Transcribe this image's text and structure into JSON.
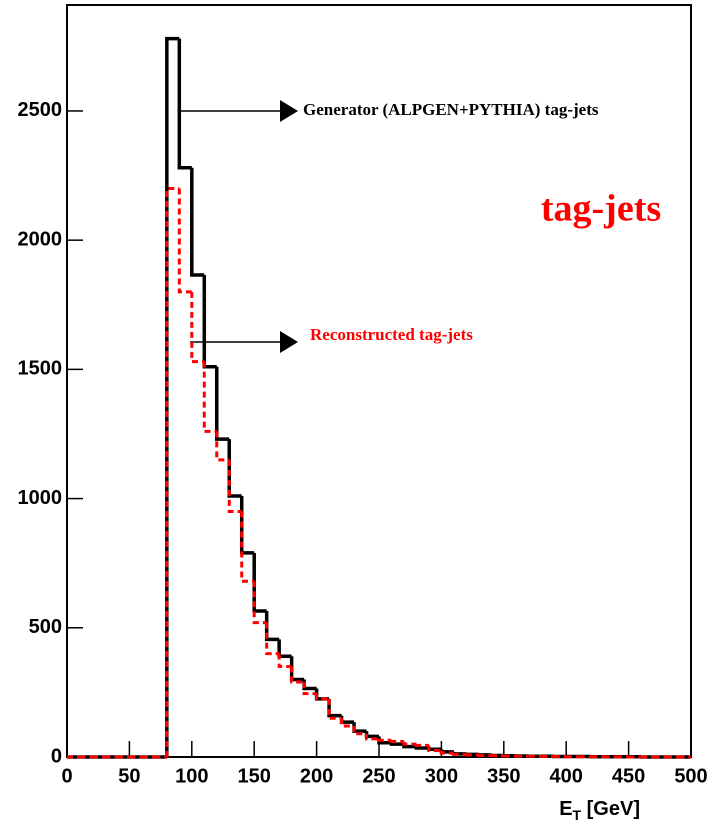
{
  "chart_data": {
    "type": "histogram",
    "x_label": {
      "main": "E",
      "sub": "T",
      "rest": " [GeV]"
    },
    "annotations": [
      "Generator (ALPGEN+PYTHIA) tag-jets",
      "Reconstructed tag-jets",
      "tag-jets"
    ],
    "bins": [
      0,
      10,
      20,
      30,
      40,
      50,
      60,
      70,
      80,
      90,
      100,
      110,
      120,
      130,
      140,
      150,
      160,
      170,
      180,
      190,
      200,
      210,
      220,
      230,
      240,
      250,
      260,
      270,
      280,
      290,
      300,
      310,
      320,
      330,
      340,
      350,
      360,
      370,
      380,
      390,
      400,
      410,
      420,
      430,
      440,
      450,
      460,
      470,
      480,
      490,
      500
    ],
    "series": [
      {
        "color": "#000000",
        "values": [
          0,
          0,
          0,
          0,
          0,
          0,
          0,
          0,
          2780,
          2280,
          1865,
          1510,
          1230,
          1010,
          790,
          565,
          455,
          390,
          300,
          265,
          225,
          160,
          135,
          100,
          80,
          55,
          50,
          40,
          35,
          30,
          20,
          12,
          10,
          8,
          6,
          5,
          4,
          3,
          3,
          2,
          2,
          2,
          1,
          1,
          1,
          1,
          0,
          0,
          0,
          0
        ]
      },
      {
        "color": "#ff0000",
        "values": [
          0,
          0,
          0,
          0,
          0,
          0,
          0,
          0,
          2200,
          1800,
          1530,
          1260,
          1150,
          950,
          680,
          520,
          400,
          350,
          290,
          245,
          225,
          150,
          120,
          90,
          70,
          65,
          60,
          50,
          45,
          25,
          15,
          10,
          8,
          6,
          5,
          4,
          3,
          3,
          2,
          2,
          1,
          1,
          1,
          1,
          1,
          0,
          0,
          0,
          0,
          0
        ]
      }
    ],
    "xlim": [
      0,
      500
    ],
    "xticks": [
      0,
      50,
      100,
      150,
      200,
      250,
      300,
      350,
      400,
      450,
      500
    ],
    "ylim": [
      0,
      2910
    ],
    "yticks": [
      0,
      500,
      1000,
      1500,
      2000,
      2500
    ]
  }
}
